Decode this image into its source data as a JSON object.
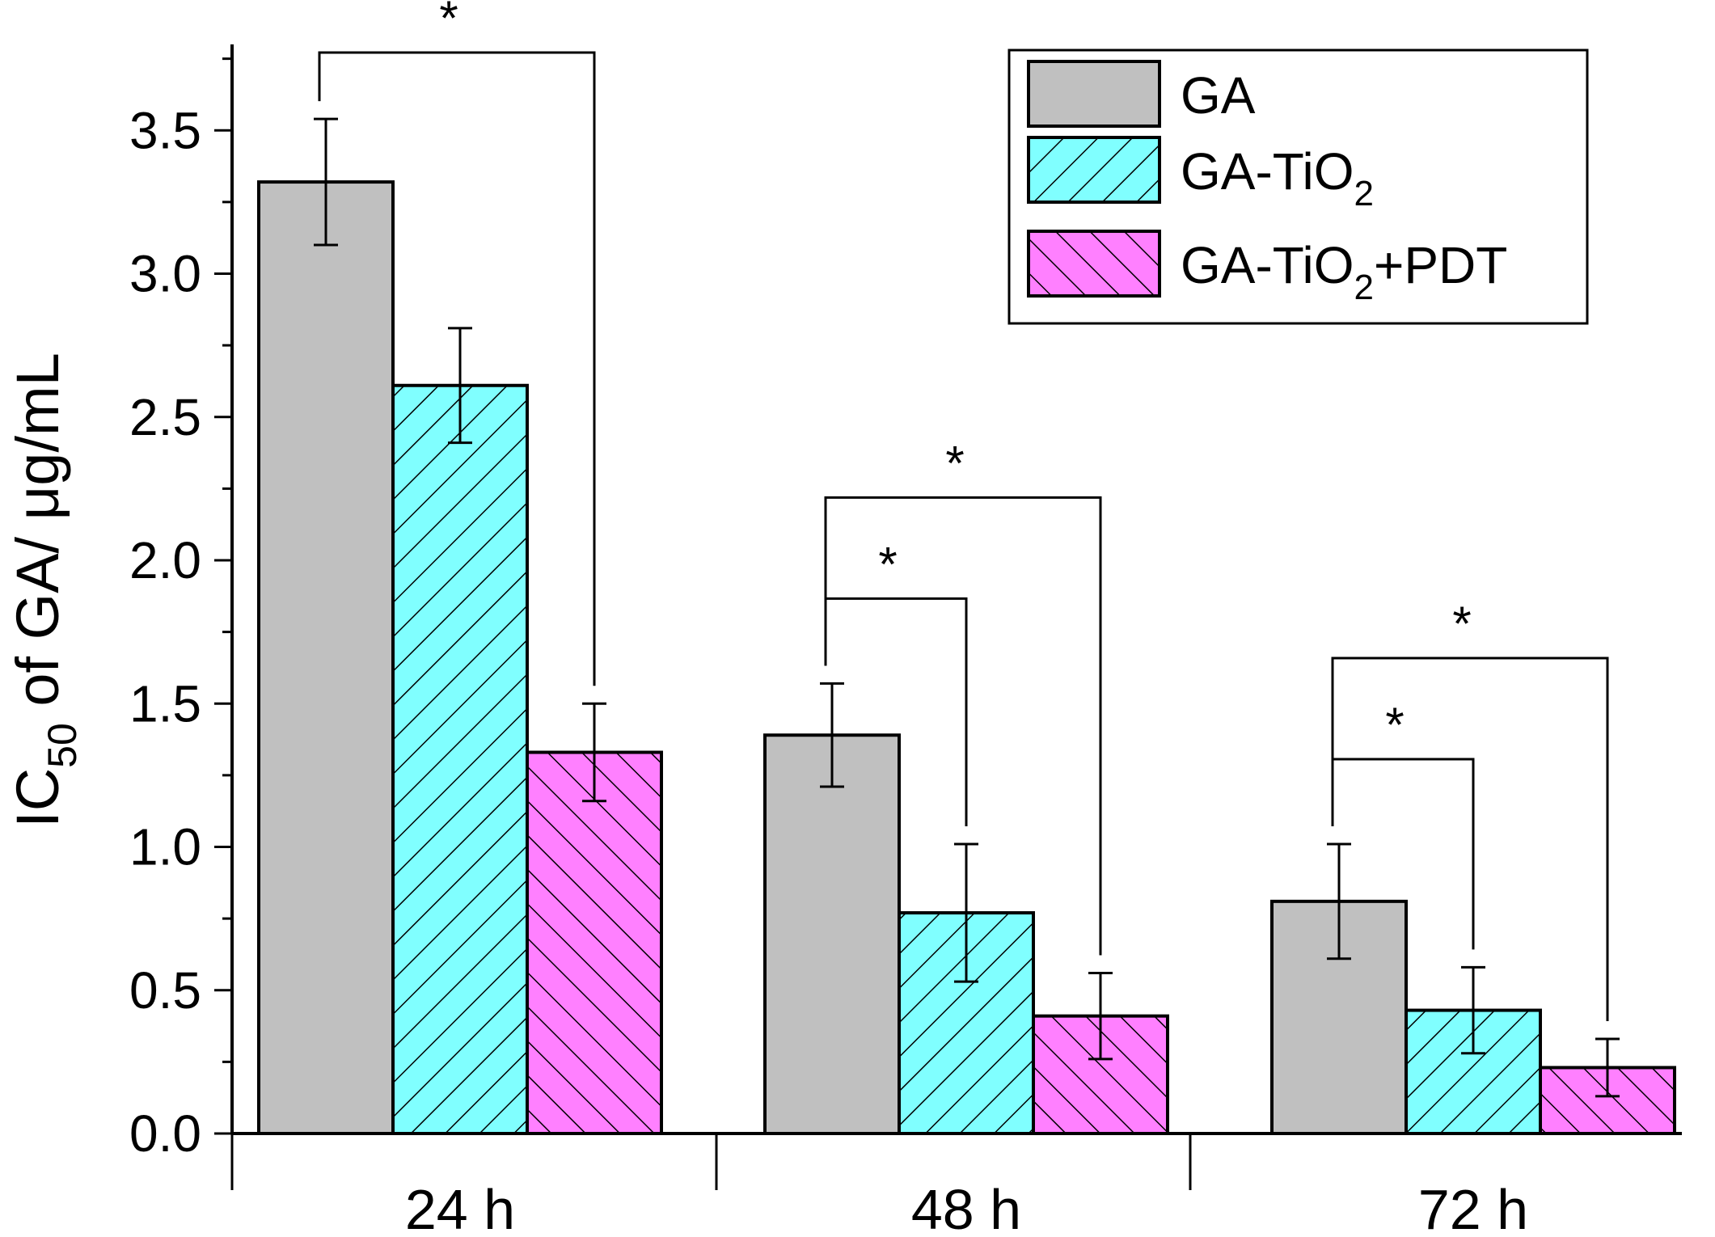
{
  "chart_data": {
    "type": "bar",
    "categories": [
      "24 h",
      "48 h",
      "72 h"
    ],
    "series": [
      {
        "name": "GA",
        "color": "#c0c0c0",
        "pattern": "solid",
        "values": [
          3.32,
          1.39,
          0.81
        ],
        "errors": [
          0.22,
          0.18,
          0.2
        ]
      },
      {
        "name": "GA-TiO2",
        "label_main": "GA-TiO",
        "label_sub": "2",
        "label_suffix": "",
        "color": "#80ffff",
        "pattern": "forward-hatch",
        "values": [
          2.61,
          0.77,
          0.43
        ],
        "errors": [
          0.2,
          0.24,
          0.15
        ]
      },
      {
        "name": "GA-TiO2+PDT",
        "label_main": "GA-TiO",
        "label_sub": "2",
        "label_suffix": "+PDT",
        "color": "#ff80ff",
        "pattern": "back-hatch",
        "values": [
          1.33,
          0.41,
          0.23
        ],
        "errors": [
          0.17,
          0.15,
          0.1
        ]
      }
    ],
    "ylabel": {
      "main_before": "IC",
      "sub": "50",
      "main_after": " of GA/ μg/mL"
    },
    "xlabel": "",
    "yticks": [
      "0.0",
      "0.5",
      "1.0",
      "1.5",
      "2.0",
      "2.5",
      "3.0",
      "3.5"
    ],
    "ylim": [
      0,
      3.8
    ],
    "legend_position": "top-right",
    "significance": [
      {
        "category": 0,
        "from": 0,
        "to": 2,
        "label": "*"
      },
      {
        "category": 1,
        "from": 0,
        "to": 1,
        "label": "*"
      },
      {
        "category": 1,
        "from": 0,
        "to": 2,
        "label": "*"
      },
      {
        "category": 2,
        "from": 0,
        "to": 1,
        "label": "*"
      },
      {
        "category": 2,
        "from": 0,
        "to": 2,
        "label": "*"
      }
    ]
  }
}
